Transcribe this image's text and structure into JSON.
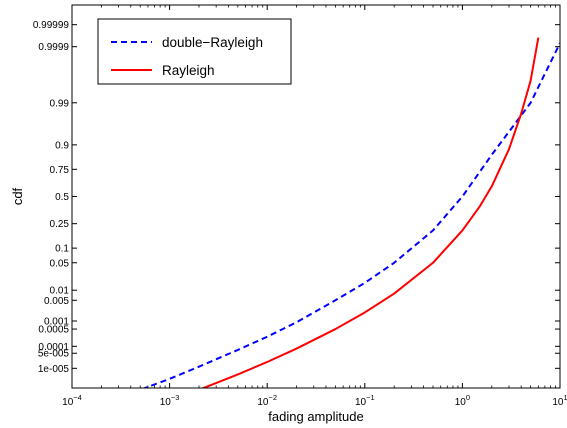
{
  "chart_data": {
    "type": "line",
    "xlabel": "fading amplitude",
    "ylabel": "cdf",
    "xscale": "log",
    "yscale": "probability (normal-probability-style spacing)",
    "xlim": [
      0.0001,
      10
    ],
    "ylim": [
      1e-06,
      0.999999
    ],
    "x_ticks": [
      0.0001,
      0.001,
      0.01,
      0.1,
      1,
      10
    ],
    "x_tick_labels": [
      {
        "base": "10",
        "exp": "−4"
      },
      {
        "base": "10",
        "exp": "−3"
      },
      {
        "base": "10",
        "exp": "−2"
      },
      {
        "base": "10",
        "exp": "−1"
      },
      {
        "base": "10",
        "exp": "0"
      },
      {
        "base": "10",
        "exp": "1"
      }
    ],
    "y_ticks": [
      0.99999,
      0.9999,
      0.99,
      0.9,
      0.75,
      0.5,
      0.25,
      0.1,
      0.05,
      0.01,
      0.005,
      0.001,
      0.0005,
      0.0001,
      5e-05,
      1e-05
    ],
    "y_tick_labels": [
      "0.99999",
      "0.9999",
      "0.99",
      "0.9",
      "0.75",
      "0.5",
      "0.25",
      "0.1",
      "0.05",
      "0.01",
      "0.005",
      "0.001",
      "0.0005",
      "0.0001",
      "5e-005",
      "1e-005"
    ],
    "grid": false,
    "legend_position": "top-left",
    "series": [
      {
        "name": "double−Rayleigh",
        "color": "#0000ff",
        "style": "dashed",
        "x": [
          0.00027,
          0.0005,
          0.001,
          0.002,
          0.005,
          0.01,
          0.02,
          0.05,
          0.1,
          0.2,
          0.5,
          1,
          2,
          5,
          10
        ],
        "y": [
          2e-07,
          8e-07,
          3e-06,
          1.2e-05,
          7e-05,
          0.00025,
          0.0009,
          0.005,
          0.016,
          0.05,
          0.2,
          0.5,
          0.85,
          0.99,
          0.99993
        ]
      },
      {
        "name": "Rayleigh",
        "color": "#ff0000",
        "style": "solid",
        "x": [
          0.001,
          0.002,
          0.005,
          0.01,
          0.02,
          0.05,
          0.1,
          0.2,
          0.5,
          1,
          1.5,
          2,
          3,
          4,
          5,
          6
        ],
        "y": [
          2e-07,
          8e-07,
          5e-06,
          2e-05,
          8e-05,
          0.0005,
          0.002,
          0.008,
          0.05,
          0.2,
          0.4,
          0.6,
          0.88,
          0.98,
          0.998,
          0.99996
        ]
      }
    ]
  }
}
